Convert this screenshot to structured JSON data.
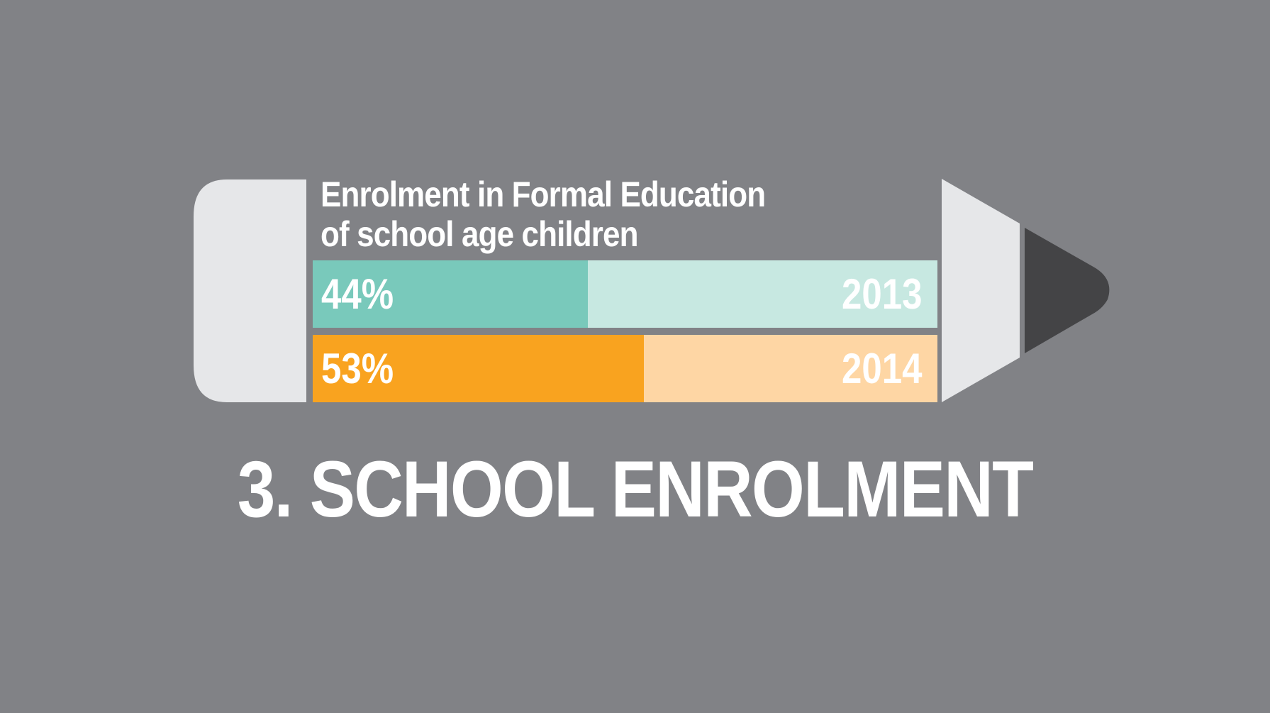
{
  "headline": "3. SCHOOL ENROLMENT",
  "colors": {
    "background": "#818286",
    "pencil_body": "#e6e7e9",
    "pencil_tip": "#444446",
    "series_2013_fill": "#79c9bb",
    "series_2013_rest": "#c7e8e1",
    "series_2014_fill": "#f9a31f",
    "series_2014_rest": "#fed6a4"
  },
  "chart_data": {
    "type": "bar",
    "orientation": "horizontal",
    "title_lines": [
      "Enrolment in Formal Education",
      "of school age children"
    ],
    "xlim": [
      0,
      100
    ],
    "bars": [
      {
        "category": "2013",
        "value": 44,
        "value_label": "44%"
      },
      {
        "category": "2014",
        "value": 53,
        "value_label": "53%"
      }
    ]
  }
}
